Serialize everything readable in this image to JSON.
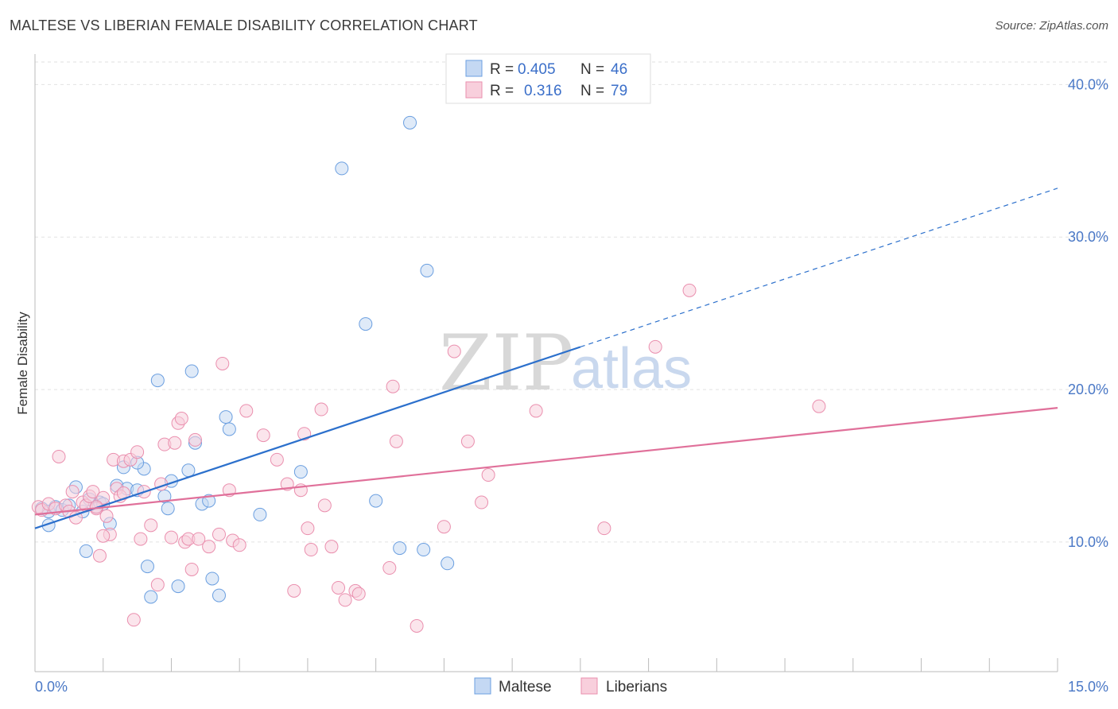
{
  "title": "MALTESE VS LIBERIAN FEMALE DISABILITY CORRELATION CHART",
  "source": "Source: ZipAtlas.com",
  "watermark": {
    "zip": "ZIP",
    "atlas": "atlas"
  },
  "legend": {
    "r_label": "R =",
    "n_label": "N =",
    "rows": [
      {
        "r": "0.405",
        "n": "46"
      },
      {
        "r": "0.316",
        "n": "79"
      }
    ]
  },
  "bottom_legend": [
    "Maltese",
    "Liberians"
  ],
  "colors": {
    "maltese": "#6b9fe0",
    "maltese_fill": "#c4d8f3",
    "maltese_line": "#2c70cc",
    "liberian": "#ea8fae",
    "liberian_fill": "#f8cfdc",
    "liberian_line": "#e0709a",
    "tick_text": "#4a78c6"
  },
  "chart_data": {
    "type": "scatter",
    "title": "MALTESE VS LIBERIAN FEMALE DISABILITY CORRELATION CHART",
    "xlabel": "",
    "ylabel": "Female Disability",
    "xlim": [
      0,
      15
    ],
    "ylim": [
      1.5,
      42
    ],
    "x_tick_labels": [
      "0.0%",
      "15.0%"
    ],
    "y_ticks": [
      10,
      20,
      30,
      40
    ],
    "y_tick_labels": [
      "10.0%",
      "20.0%",
      "30.0%",
      "40.0%"
    ],
    "grid": true,
    "legend_position": "top-center",
    "series": [
      {
        "name": "Maltese",
        "r": 0.405,
        "n": 46,
        "trend": {
          "x0": 0,
          "y0": 10.9,
          "x1": 15,
          "y1": 33.2,
          "solid_until_x": 8.0
        },
        "points": [
          [
            0.1,
            12.2
          ],
          [
            0.2,
            12.0
          ],
          [
            0.2,
            11.1
          ],
          [
            0.3,
            12.3
          ],
          [
            0.4,
            12.1
          ],
          [
            0.5,
            12.4
          ],
          [
            0.6,
            13.6
          ],
          [
            0.7,
            12.0
          ],
          [
            0.8,
            12.8
          ],
          [
            0.9,
            12.3
          ],
          [
            0.95,
            12.6
          ],
          [
            1.1,
            11.2
          ],
          [
            1.2,
            13.7
          ],
          [
            1.3,
            14.9
          ],
          [
            1.35,
            13.5
          ],
          [
            1.5,
            13.4
          ],
          [
            1.6,
            14.8
          ],
          [
            1.65,
            8.4
          ],
          [
            1.7,
            6.4
          ],
          [
            1.8,
            20.6
          ],
          [
            1.9,
            13.0
          ],
          [
            1.95,
            12.2
          ],
          [
            2.0,
            14.0
          ],
          [
            2.1,
            7.1
          ],
          [
            2.3,
            21.2
          ],
          [
            2.25,
            14.7
          ],
          [
            2.35,
            16.5
          ],
          [
            2.45,
            12.5
          ],
          [
            2.55,
            12.7
          ],
          [
            2.6,
            7.6
          ],
          [
            2.7,
            6.5
          ],
          [
            2.8,
            18.2
          ],
          [
            2.85,
            17.4
          ],
          [
            3.3,
            11.8
          ],
          [
            3.9,
            14.6
          ],
          [
            4.5,
            34.5
          ],
          [
            4.85,
            24.3
          ],
          [
            5.0,
            12.7
          ],
          [
            5.35,
            9.6
          ],
          [
            5.5,
            37.5
          ],
          [
            5.7,
            9.5
          ],
          [
            5.75,
            27.8
          ],
          [
            6.05,
            8.6
          ],
          [
            0.75,
            9.4
          ],
          [
            1.0,
            12.5
          ],
          [
            1.5,
            15.2
          ]
        ]
      },
      {
        "name": "Liberians",
        "r": 0.316,
        "n": 79,
        "trend": {
          "x0": 0,
          "y0": 11.8,
          "x1": 15,
          "y1": 18.8
        },
        "points": [
          [
            0.05,
            12.3
          ],
          [
            0.1,
            12.1
          ],
          [
            0.2,
            12.5
          ],
          [
            0.3,
            12.2
          ],
          [
            0.35,
            15.6
          ],
          [
            0.45,
            12.4
          ],
          [
            0.5,
            12.0
          ],
          [
            0.55,
            13.3
          ],
          [
            0.6,
            11.6
          ],
          [
            0.7,
            12.6
          ],
          [
            0.75,
            12.4
          ],
          [
            0.8,
            13.0
          ],
          [
            0.85,
            13.3
          ],
          [
            0.9,
            12.2
          ],
          [
            0.95,
            9.1
          ],
          [
            1.0,
            12.9
          ],
          [
            1.05,
            11.7
          ],
          [
            1.1,
            10.5
          ],
          [
            1.15,
            15.4
          ],
          [
            1.2,
            13.5
          ],
          [
            1.25,
            13.0
          ],
          [
            1.3,
            15.3
          ],
          [
            1.4,
            15.4
          ],
          [
            1.45,
            4.9
          ],
          [
            1.5,
            15.9
          ],
          [
            1.55,
            10.2
          ],
          [
            1.6,
            13.3
          ],
          [
            1.7,
            11.1
          ],
          [
            1.8,
            7.2
          ],
          [
            1.85,
            13.8
          ],
          [
            1.9,
            16.4
          ],
          [
            2.0,
            10.3
          ],
          [
            2.05,
            16.5
          ],
          [
            2.1,
            17.8
          ],
          [
            2.15,
            18.1
          ],
          [
            2.2,
            10.0
          ],
          [
            2.25,
            10.2
          ],
          [
            2.3,
            8.2
          ],
          [
            2.35,
            16.7
          ],
          [
            2.4,
            10.2
          ],
          [
            2.55,
            9.7
          ],
          [
            2.7,
            10.5
          ],
          [
            2.75,
            21.7
          ],
          [
            2.85,
            13.4
          ],
          [
            2.9,
            10.1
          ],
          [
            3.0,
            9.8
          ],
          [
            3.1,
            18.6
          ],
          [
            3.35,
            17.0
          ],
          [
            3.55,
            15.4
          ],
          [
            3.7,
            13.8
          ],
          [
            3.8,
            6.8
          ],
          [
            3.9,
            13.4
          ],
          [
            3.95,
            17.1
          ],
          [
            4.0,
            10.9
          ],
          [
            4.05,
            9.5
          ],
          [
            4.2,
            18.7
          ],
          [
            4.25,
            12.4
          ],
          [
            4.35,
            9.7
          ],
          [
            4.45,
            7.0
          ],
          [
            4.55,
            6.2
          ],
          [
            4.7,
            6.8
          ],
          [
            4.75,
            6.6
          ],
          [
            5.2,
            8.3
          ],
          [
            5.25,
            20.2
          ],
          [
            5.3,
            16.6
          ],
          [
            5.6,
            4.5
          ],
          [
            6.0,
            11.0
          ],
          [
            6.15,
            22.5
          ],
          [
            6.35,
            16.6
          ],
          [
            6.55,
            12.6
          ],
          [
            6.65,
            14.4
          ],
          [
            7.35,
            18.6
          ],
          [
            8.35,
            10.9
          ],
          [
            9.1,
            22.8
          ],
          [
            9.6,
            26.5
          ],
          [
            11.5,
            18.9
          ],
          [
            0.9,
            12.3
          ],
          [
            1.0,
            10.4
          ],
          [
            1.3,
            13.2
          ]
        ]
      }
    ]
  }
}
